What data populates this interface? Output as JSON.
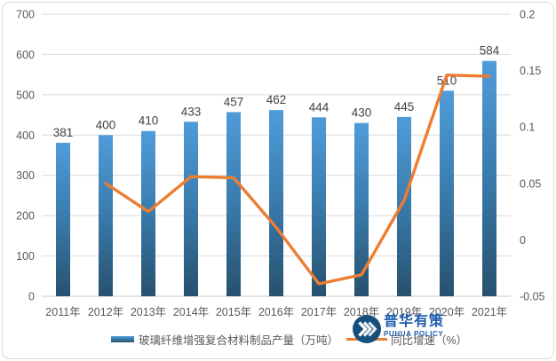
{
  "chart_data": {
    "type": "combo",
    "title": "",
    "categories": [
      "2011年",
      "2012年",
      "2013年",
      "2014年",
      "2015年",
      "2016年",
      "2017年",
      "2018年",
      "2019年",
      "2020年",
      "2021年"
    ],
    "series": [
      {
        "name": "玻璃纤维增强复合材料制品产量（万吨）",
        "type": "bar",
        "axis": "left",
        "values": [
          381,
          400,
          410,
          433,
          457,
          462,
          444,
          430,
          445,
          510,
          584
        ]
      },
      {
        "name": "同比增速（%）",
        "type": "line",
        "axis": "right",
        "values": [
          null,
          0.05,
          0.025,
          0.056,
          0.055,
          0.011,
          -0.039,
          -0.031,
          0.035,
          0.146,
          0.145
        ]
      }
    ],
    "left_axis": {
      "min": 0,
      "max": 700,
      "step": 100,
      "tick_labels": [
        "700",
        "600",
        "500",
        "400",
        "300",
        "200",
        "100",
        "0"
      ]
    },
    "right_axis": {
      "min": -0.05,
      "max": 0.2,
      "step": 0.05,
      "tick_labels": [
        "0.2",
        "0.15",
        "0.1",
        "0.05",
        "0",
        "-0.05"
      ]
    },
    "grid": true,
    "legend_position": "bottom"
  },
  "legend": {
    "bar_label": "玻璃纤维增强复合材料制品产量（万吨）",
    "line_label": "同比增速（%）"
  },
  "watermark": {
    "name_cn": "普华有策",
    "name_en": "PUHUA POLICY"
  },
  "colors": {
    "bar_top": "#4f9cda",
    "bar_mid": "#3a7cad",
    "bar_bottom": "#27516f",
    "line": "#ed7d31",
    "grid": "#d9d9d9",
    "baseline": "#c9c9c9",
    "axis_text": "#595959",
    "label_text": "#404040"
  }
}
